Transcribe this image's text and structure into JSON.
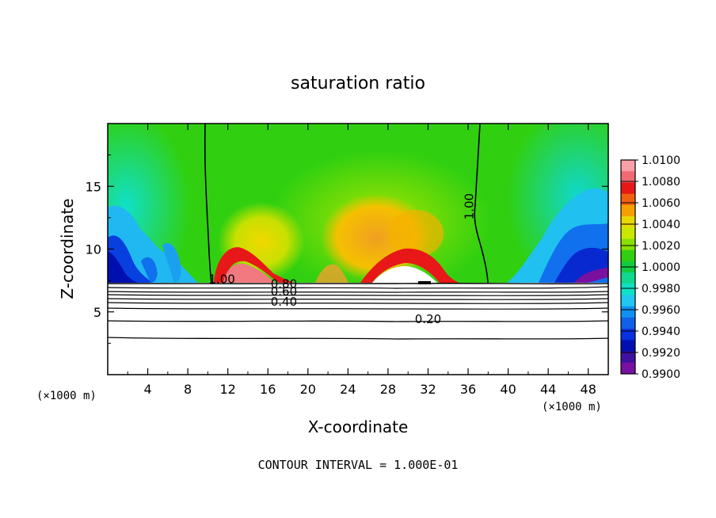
{
  "chart_data": {
    "type": "filled-contour",
    "title": "saturation ratio",
    "xlabel": "X-coordinate",
    "ylabel": "Z-coordinate",
    "x_unit": "(×1000 m)",
    "x_unit_right": "(×1000 m)",
    "xlim": [
      0,
      50
    ],
    "ylim": [
      0,
      20
    ],
    "x_ticks": [
      "4",
      "8",
      "12",
      "16",
      "20",
      "24",
      "28",
      "32",
      "36",
      "40",
      "44",
      "48"
    ],
    "y_ticks": [
      "5",
      "10",
      "15"
    ],
    "footer": "CONTOUR INTERVAL = 1.000E-01",
    "colorbar": {
      "labels": [
        "1.0100",
        "1.0080",
        "1.0060",
        "1.0040",
        "1.0020",
        "1.0000",
        "0.9980",
        "0.9960",
        "0.9940",
        "0.9920",
        "0.9900"
      ],
      "colors": [
        "#f7a0a8",
        "#f06a72",
        "#e81818",
        "#f06010",
        "#f5a000",
        "#e8d800",
        "#c8e800",
        "#88e000",
        "#30d010",
        "#10cc40",
        "#10d890",
        "#10e0c8",
        "#20c8f0",
        "#1090f0",
        "#1060e8",
        "#0830e0",
        "#0010b0",
        "#4010a0",
        "#7a10a0"
      ]
    },
    "contour_labels": [
      {
        "text": "1.00",
        "x": 11.4,
        "z": 7.3
      },
      {
        "text": "1.00",
        "x": 36.5,
        "z": 13.4
      },
      {
        "text": "0.80",
        "x": 17.6,
        "z": 6.9
      },
      {
        "text": "0.60",
        "x": 17.6,
        "z": 6.3
      },
      {
        "text": "0.40",
        "x": 17.6,
        "z": 5.5
      },
      {
        "text": "0.20",
        "x": 32.0,
        "z": 4.1
      }
    ]
  }
}
